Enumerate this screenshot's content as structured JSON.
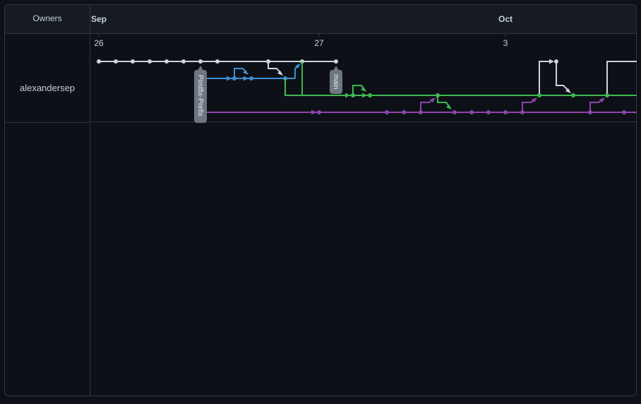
{
  "header": {
    "owners_label": "Owners",
    "months": [
      "Sep",
      "Oct"
    ]
  },
  "days": [
    "26",
    "27",
    "3"
  ],
  "owners": [
    {
      "name": "alexandersep"
    }
  ],
  "tags": {
    "branch_a": "Postfix-Prefix",
    "branch_b": "main"
  },
  "colors": {
    "background": "#0d1117",
    "header": "#161b22",
    "border": "#30363d",
    "branch_white": "#d0d4da",
    "branch_blue": "#3f8fd2",
    "branch_green": "#3fb950",
    "branch_purple": "#8e44ad",
    "tag": "#6e7681"
  }
}
